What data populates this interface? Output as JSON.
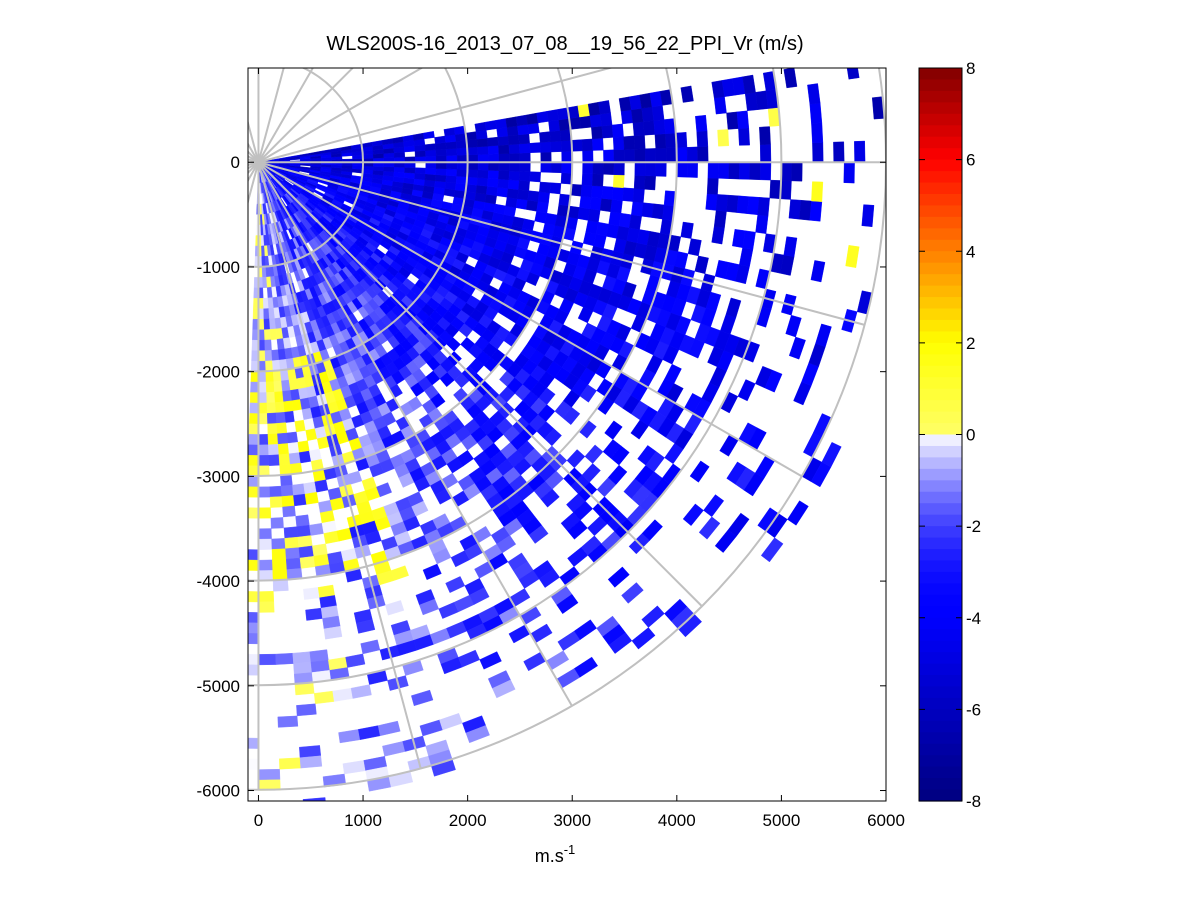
{
  "chart_data": {
    "type": "heatmap",
    "subtype": "polar-ppi-sector",
    "title": "WLS200S-16_2013_07_08__19_56_22_PPI_Vr (m/s)",
    "xlabel_base": "m.s",
    "xlabel_sup": "-1",
    "ylabel": "",
    "xlim": [
      -100,
      6000
    ],
    "ylim": [
      -6100,
      900
    ],
    "x_ticks": [
      0,
      1000,
      2000,
      3000,
      4000,
      5000,
      6000
    ],
    "x_tick_labels": [
      "0",
      "1000",
      "2000",
      "3000",
      "4000",
      "5000",
      "6000"
    ],
    "y_ticks": [
      0,
      -1000,
      -2000,
      -3000,
      -4000,
      -5000,
      -6000
    ],
    "y_tick_labels": [
      "0",
      "-1000",
      "-2000",
      "-3000",
      "-4000",
      "-5000",
      "-6000"
    ],
    "range_rings_m": [
      1000,
      2000,
      3000,
      4000,
      5000,
      6000
    ],
    "radial_spokes_deg": [
      0,
      15,
      30,
      45,
      60,
      75,
      90,
      105,
      120,
      135,
      150,
      165,
      180,
      195,
      210,
      225,
      240,
      255,
      270,
      285,
      300,
      315,
      330,
      345
    ],
    "spoke_length_m": 6000,
    "sector_deg": [
      -92,
      10
    ],
    "colorbar": {
      "range": [
        -8,
        8
      ],
      "ticks": [
        8,
        6,
        4,
        2,
        0,
        -2,
        -4,
        -6,
        -8
      ],
      "tick_labels": [
        "8",
        "6",
        "4",
        "2",
        "0",
        "-2",
        "-4",
        "-6",
        "-8"
      ],
      "n_levels": 64
    },
    "velocity_field": {
      "units": "m/s",
      "range_gate_m": 100,
      "azimuth_step_deg": 2,
      "zones": [
        {
          "region": "near, 0-30 deg below east",
          "typical_vr": -5
        },
        {
          "region": "mid sector, 30-60 deg",
          "typical_vr": -4
        },
        {
          "region": "south, 60-90 deg",
          "typical_vr": -1.5
        },
        {
          "region": "south edge near range 2500-4000 m",
          "typical_vr": 1
        }
      ]
    }
  }
}
